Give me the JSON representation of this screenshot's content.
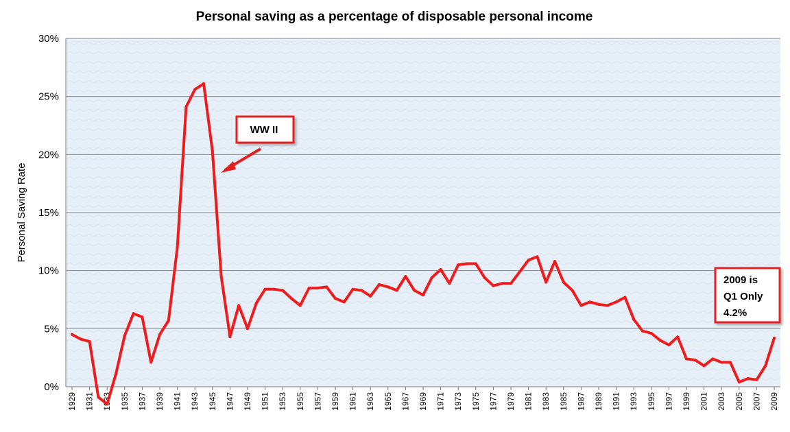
{
  "chart_data": {
    "type": "line",
    "title": "Personal saving as a percentage of disposable personal income",
    "xlabel": "",
    "ylabel": "Personal Saving Rate",
    "ylim": [
      0,
      30
    ],
    "yticks": [
      "0%",
      "5%",
      "10%",
      "15%",
      "20%",
      "25%",
      "30%"
    ],
    "ytick_values": [
      0,
      5,
      10,
      15,
      20,
      25,
      30
    ],
    "x": [
      1929,
      1930,
      1931,
      1932,
      1933,
      1934,
      1935,
      1936,
      1937,
      1938,
      1939,
      1940,
      1941,
      1942,
      1943,
      1944,
      1945,
      1946,
      1947,
      1948,
      1949,
      1950,
      1951,
      1952,
      1953,
      1954,
      1955,
      1956,
      1957,
      1958,
      1959,
      1960,
      1961,
      1962,
      1963,
      1964,
      1965,
      1966,
      1967,
      1968,
      1969,
      1970,
      1971,
      1972,
      1973,
      1974,
      1975,
      1976,
      1977,
      1978,
      1979,
      1980,
      1981,
      1982,
      1983,
      1984,
      1985,
      1986,
      1987,
      1988,
      1989,
      1990,
      1991,
      1992,
      1993,
      1994,
      1995,
      1996,
      1997,
      1998,
      1999,
      2000,
      2001,
      2002,
      2003,
      2004,
      2005,
      2006,
      2007,
      2008,
      2009
    ],
    "xtick_labels": [
      "1929",
      "1931",
      "1933",
      "1935",
      "1937",
      "1939",
      "1941",
      "1943",
      "1945",
      "1947",
      "1949",
      "1951",
      "1953",
      "1955",
      "1957",
      "1959",
      "1961",
      "1963",
      "1965",
      "1967",
      "1969",
      "1971",
      "1973",
      "1975",
      "1977",
      "1979",
      "1981",
      "1983",
      "1985",
      "1987",
      "1989",
      "1991",
      "1993",
      "1995",
      "1997",
      "1999",
      "2001",
      "2003",
      "2005",
      "2007",
      "2009"
    ],
    "series": [
      {
        "values": [
          4.5,
          4.1,
          3.9,
          -0.9,
          -1.5,
          1.1,
          4.4,
          6.3,
          6.0,
          2.1,
          4.5,
          5.7,
          12.0,
          24.1,
          25.6,
          26.1,
          20.3,
          9.5,
          4.3,
          7.0,
          5.0,
          7.2,
          8.4,
          8.4,
          8.3,
          7.6,
          7.0,
          8.5,
          8.5,
          8.6,
          7.6,
          7.3,
          8.4,
          8.3,
          7.8,
          8.8,
          8.6,
          8.3,
          9.5,
          8.3,
          7.9,
          9.4,
          10.1,
          8.9,
          10.5,
          10.6,
          10.6,
          9.4,
          8.7,
          8.9,
          8.9,
          9.9,
          10.9,
          11.2,
          9.0,
          10.8,
          9.0,
          8.3,
          7.0,
          7.3,
          7.1,
          7.0,
          7.3,
          7.7,
          5.8,
          4.8,
          4.6,
          4.0,
          3.6,
          4.3,
          2.4,
          2.3,
          1.8,
          2.4,
          2.1,
          2.1,
          0.4,
          0.7,
          0.6,
          1.8,
          4.2
        ],
        "color": "#ee1c1c"
      }
    ],
    "grid": true,
    "legend": "none",
    "plot_background": "#e6eef8",
    "gridline_color": "#8a8a8a",
    "annotations": [
      {
        "lines": [
          "WW II"
        ],
        "target_x": 1945,
        "border_color": "#e02020",
        "arrow_color": "#e02020"
      },
      {
        "lines": [
          "2009 is",
          "Q1 Only",
          "4.2%"
        ],
        "target_x": 2009,
        "border_color": "#e02020"
      }
    ]
  }
}
